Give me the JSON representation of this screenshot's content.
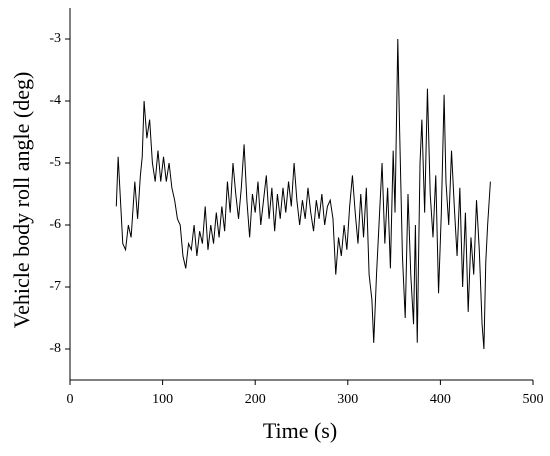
{
  "chart_data": {
    "type": "line",
    "xlabel": "Time (s)",
    "ylabel": "Vehicle body roll angle (deg)",
    "xlim": [
      0,
      500
    ],
    "xticks": [
      0,
      100,
      200,
      300,
      400,
      500
    ],
    "ylim": [
      -8.5,
      -2.5
    ],
    "yticks": [
      -8,
      -7,
      -6,
      -5,
      -4,
      -3
    ],
    "grid": false,
    "series": [
      {
        "color": "#000000",
        "x": [
          50,
          52,
          57,
          60,
          63,
          66,
          70,
          73,
          76,
          78,
          80,
          83,
          86,
          89,
          92,
          95,
          98,
          101,
          104,
          107,
          110,
          113,
          116,
          119,
          122,
          125,
          128,
          131,
          134,
          137,
          140,
          143,
          146,
          149,
          152,
          155,
          158,
          161,
          164,
          167,
          170,
          173,
          176,
          179,
          182,
          185,
          188,
          191,
          194,
          197,
          200,
          203,
          206,
          209,
          212,
          215,
          218,
          221,
          224,
          227,
          230,
          233,
          236,
          239,
          242,
          245,
          248,
          251,
          254,
          257,
          260,
          263,
          266,
          269,
          272,
          275,
          278,
          281,
          284,
          287,
          290,
          293,
          296,
          299,
          302,
          305,
          308,
          311,
          314,
          317,
          320,
          323,
          326,
          328,
          331,
          334,
          337,
          340,
          343,
          346,
          349,
          351,
          354,
          356,
          359,
          362,
          365,
          368,
          371,
          373,
          375,
          378,
          380,
          383,
          386,
          389,
          392,
          395,
          398,
          401,
          404,
          406,
          409,
          412,
          415,
          418,
          421,
          424,
          427,
          430,
          433,
          436,
          439,
          442,
          445,
          447,
          449,
          451,
          454
        ],
        "values": [
          -5.7,
          -4.9,
          -6.3,
          -6.4,
          -6.0,
          -6.2,
          -5.3,
          -5.9,
          -5.2,
          -4.9,
          -4.0,
          -4.6,
          -4.3,
          -5.0,
          -5.3,
          -4.8,
          -5.3,
          -4.9,
          -5.3,
          -5.0,
          -5.4,
          -5.6,
          -5.9,
          -6.0,
          -6.5,
          -6.7,
          -6.3,
          -6.4,
          -6.0,
          -6.5,
          -6.1,
          -6.3,
          -5.7,
          -6.4,
          -6.0,
          -6.3,
          -5.8,
          -6.2,
          -5.7,
          -6.1,
          -5.3,
          -5.8,
          -5.0,
          -5.5,
          -5.9,
          -5.4,
          -4.7,
          -5.6,
          -6.2,
          -5.5,
          -5.8,
          -5.3,
          -6.0,
          -5.6,
          -5.2,
          -5.9,
          -5.4,
          -6.1,
          -5.5,
          -5.9,
          -5.4,
          -5.8,
          -5.3,
          -5.7,
          -5.0,
          -5.6,
          -6.0,
          -5.6,
          -5.9,
          -5.4,
          -5.8,
          -6.1,
          -5.6,
          -5.9,
          -5.5,
          -6.0,
          -5.7,
          -5.6,
          -5.9,
          -6.8,
          -6.2,
          -6.5,
          -6.0,
          -6.4,
          -5.7,
          -5.2,
          -5.8,
          -6.3,
          -5.5,
          -6.2,
          -5.4,
          -6.8,
          -7.2,
          -7.9,
          -6.8,
          -5.9,
          -5.0,
          -6.3,
          -5.4,
          -6.7,
          -4.8,
          -5.8,
          -3.0,
          -4.5,
          -6.5,
          -7.5,
          -5.5,
          -6.8,
          -7.6,
          -6.0,
          -7.9,
          -5.0,
          -4.3,
          -5.8,
          -3.8,
          -5.5,
          -6.2,
          -5.2,
          -7.1,
          -5.8,
          -3.9,
          -5.3,
          -6.0,
          -4.8,
          -5.7,
          -6.5,
          -5.4,
          -7.0,
          -5.8,
          -7.4,
          -6.2,
          -6.8,
          -5.6,
          -6.4,
          -7.6,
          -8.0,
          -6.6,
          -6.0,
          -5.3
        ]
      }
    ]
  }
}
